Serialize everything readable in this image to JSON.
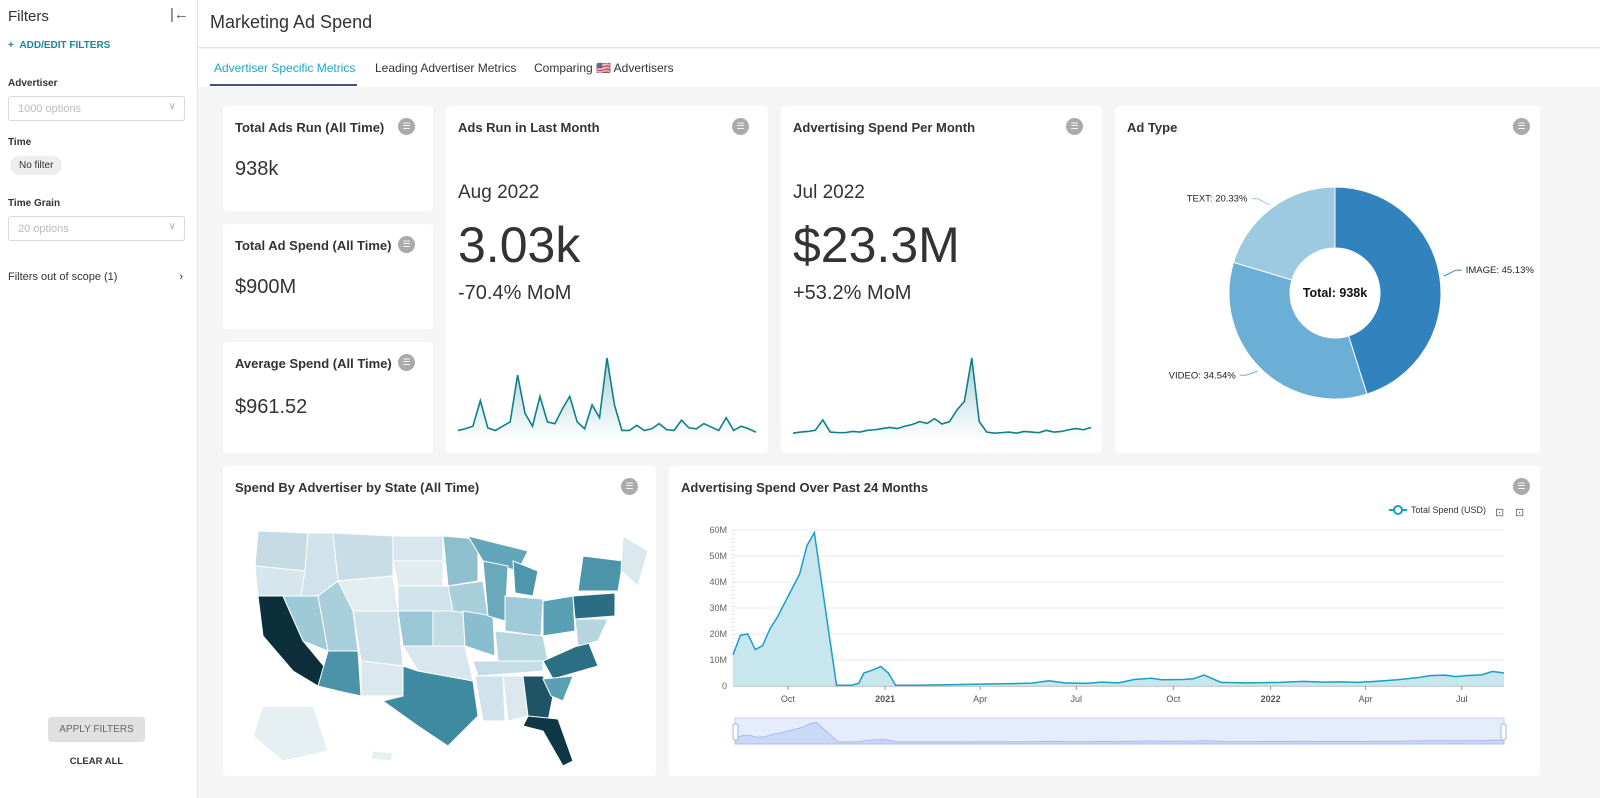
{
  "sidebar": {
    "title": "Filters",
    "add_edit": "ADD/EDIT FILTERS",
    "advertiser_label": "Advertiser",
    "advertiser_placeholder": "1000 options",
    "time_label": "Time",
    "time_value": "No filter",
    "grain_label": "Time Grain",
    "grain_placeholder": "20 options",
    "out_of_scope": "Filters out of scope (1)",
    "apply": "APPLY FILTERS",
    "clear": "CLEAR ALL"
  },
  "header": {
    "title": "Marketing Ad Spend"
  },
  "tabs": [
    {
      "label": "Advertiser Specific Metrics",
      "active": true
    },
    {
      "label": "Leading Advertiser Metrics"
    },
    {
      "label": "Comparing 🇺🇸 Advertisers"
    }
  ],
  "cards": {
    "total_ads": {
      "title": "Total Ads Run (All Time)",
      "value": "938k"
    },
    "total_spend": {
      "title": "Total Ad Spend (All Time)",
      "value": "$900M"
    },
    "avg_spend": {
      "title": "Average Spend (All Time)",
      "value": "$961.52"
    },
    "ads_last_month": {
      "title": "Ads Run in Last Month",
      "period": "Aug 2022",
      "value": "3.03k",
      "change": "-70.4% MoM"
    },
    "spend_per_month": {
      "title": "Advertising Spend Per Month",
      "period": "Jul 2022",
      "value": "$23.3M",
      "change": "+53.2% MoM"
    },
    "ad_type": {
      "title": "Ad Type",
      "center": "Total: 938k"
    },
    "map": {
      "title": "Spend By Advertiser by State (All Time)"
    },
    "line": {
      "title": "Advertising Spend Over Past 24 Months"
    }
  },
  "colors": {
    "accent": "#20a7c9",
    "line": "#1a9fc4",
    "area": "#c1e3ec",
    "pie": [
      "#3182bd",
      "#6baed6",
      "#9ecae1"
    ]
  },
  "chart_data": [
    {
      "type": "line",
      "name": "ads_last_month_sparkline",
      "values": [
        1,
        1.2,
        1.5,
        4.5,
        1.3,
        1,
        1.5,
        2,
        7.5,
        3,
        1.5,
        5,
        2,
        1.8,
        3.5,
        5,
        2,
        1.2,
        4,
        2.5,
        9.5,
        4,
        1,
        1,
        1.6,
        1,
        1.2,
        1.8,
        1.1,
        1,
        2.2,
        1.3,
        1.2,
        1.8,
        1.4,
        1,
        2.5,
        1,
        1.5,
        1.2,
        0.8
      ]
    },
    {
      "type": "line",
      "name": "spend_per_month_sparkline",
      "values": [
        1,
        1.2,
        1.3,
        1.5,
        3.3,
        1.2,
        1.1,
        1.1,
        1.3,
        1.2,
        1.5,
        1.6,
        1.8,
        2,
        1.8,
        2.2,
        2.5,
        3,
        2.7,
        3.5,
        2.6,
        3,
        5,
        6.5,
        14,
        3,
        1.2,
        1,
        1.1,
        1.2,
        1,
        1.3,
        1.2,
        1.1,
        1.5,
        1.2,
        1.3,
        1.6,
        1.8,
        1.6,
        2
      ]
    },
    {
      "type": "pie",
      "title": "Ad Type",
      "donut": true,
      "slices": [
        {
          "label": "IMAGE",
          "value": 45.13,
          "text": "IMAGE: 45.13%"
        },
        {
          "label": "VIDEO",
          "value": 34.54,
          "text": "VIDEO: 34.54%"
        },
        {
          "label": "TEXT",
          "value": 20.33,
          "text": "TEXT: 20.33%"
        }
      ]
    },
    {
      "type": "area",
      "title": "Advertising Spend Over Past 24 Months",
      "legend": "Total Spend (USD)",
      "legend_position": "top-right",
      "ylim": [
        0,
        60
      ],
      "yticks": [
        "0",
        "10M",
        "20M",
        "30M",
        "40M",
        "50M",
        "60M"
      ],
      "xticks": [
        {
          "date": "2020-10-01",
          "label": "Oct"
        },
        {
          "date": "2021-01-01",
          "label": "2021",
          "bold": true
        },
        {
          "date": "2021-04-01",
          "label": "Apr"
        },
        {
          "date": "2021-07-01",
          "label": "Jul"
        },
        {
          "date": "2021-10-01",
          "label": "Oct"
        },
        {
          "date": "2022-01-01",
          "label": "2022",
          "bold": true
        },
        {
          "date": "2022-04-01",
          "label": "Apr"
        },
        {
          "date": "2022-07-01",
          "label": "Jul"
        }
      ],
      "xlim": [
        "2020-08-10",
        "2022-08-10"
      ],
      "grid": true,
      "points": [
        [
          "2020-08-10",
          12
        ],
        [
          "2020-08-17",
          19.5
        ],
        [
          "2020-08-24",
          20
        ],
        [
          "2020-08-31",
          14
        ],
        [
          "2020-09-07",
          15.5
        ],
        [
          "2020-09-14",
          22
        ],
        [
          "2020-09-21",
          26.5
        ],
        [
          "2020-09-28",
          32
        ],
        [
          "2020-10-05",
          37.5
        ],
        [
          "2020-10-12",
          43
        ],
        [
          "2020-10-19",
          54
        ],
        [
          "2020-10-26",
          59
        ],
        [
          "2020-11-16",
          0.3
        ],
        [
          "2020-11-23",
          0.3
        ],
        [
          "2020-11-30",
          0.3
        ],
        [
          "2020-12-07",
          1
        ],
        [
          "2020-12-12",
          5
        ],
        [
          "2020-12-19",
          6
        ],
        [
          "2020-12-28",
          7.5
        ],
        [
          "2021-01-04",
          5
        ],
        [
          "2021-01-11",
          0.3
        ],
        [
          "2021-02-01",
          0.3
        ],
        [
          "2021-03-01",
          0.5
        ],
        [
          "2021-04-01",
          0.7
        ],
        [
          "2021-05-01",
          0.9
        ],
        [
          "2021-05-20",
          1.1
        ],
        [
          "2021-06-05",
          2
        ],
        [
          "2021-06-20",
          1.2
        ],
        [
          "2021-07-10",
          1
        ],
        [
          "2021-07-25",
          1.5
        ],
        [
          "2021-08-10",
          1.2
        ],
        [
          "2021-08-25",
          2.5
        ],
        [
          "2021-09-10",
          3
        ],
        [
          "2021-09-20",
          2.4
        ],
        [
          "2021-10-10",
          2.5
        ],
        [
          "2021-10-20",
          2.8
        ],
        [
          "2021-10-30",
          4.2
        ],
        [
          "2021-11-15",
          1.4
        ],
        [
          "2021-12-10",
          1.2
        ],
        [
          "2022-01-10",
          1.4
        ],
        [
          "2022-02-01",
          1.8
        ],
        [
          "2022-02-20",
          1.5
        ],
        [
          "2022-03-10",
          1.6
        ],
        [
          "2022-03-25",
          1.4
        ],
        [
          "2022-04-10",
          1.8
        ],
        [
          "2022-05-01",
          2.4
        ],
        [
          "2022-05-20",
          3.2
        ],
        [
          "2022-06-01",
          4
        ],
        [
          "2022-06-15",
          4.2
        ],
        [
          "2022-06-25",
          3.6
        ],
        [
          "2022-07-05",
          4
        ],
        [
          "2022-07-20",
          4.3
        ],
        [
          "2022-07-30",
          5.6
        ],
        [
          "2022-08-10",
          5
        ]
      ]
    }
  ]
}
